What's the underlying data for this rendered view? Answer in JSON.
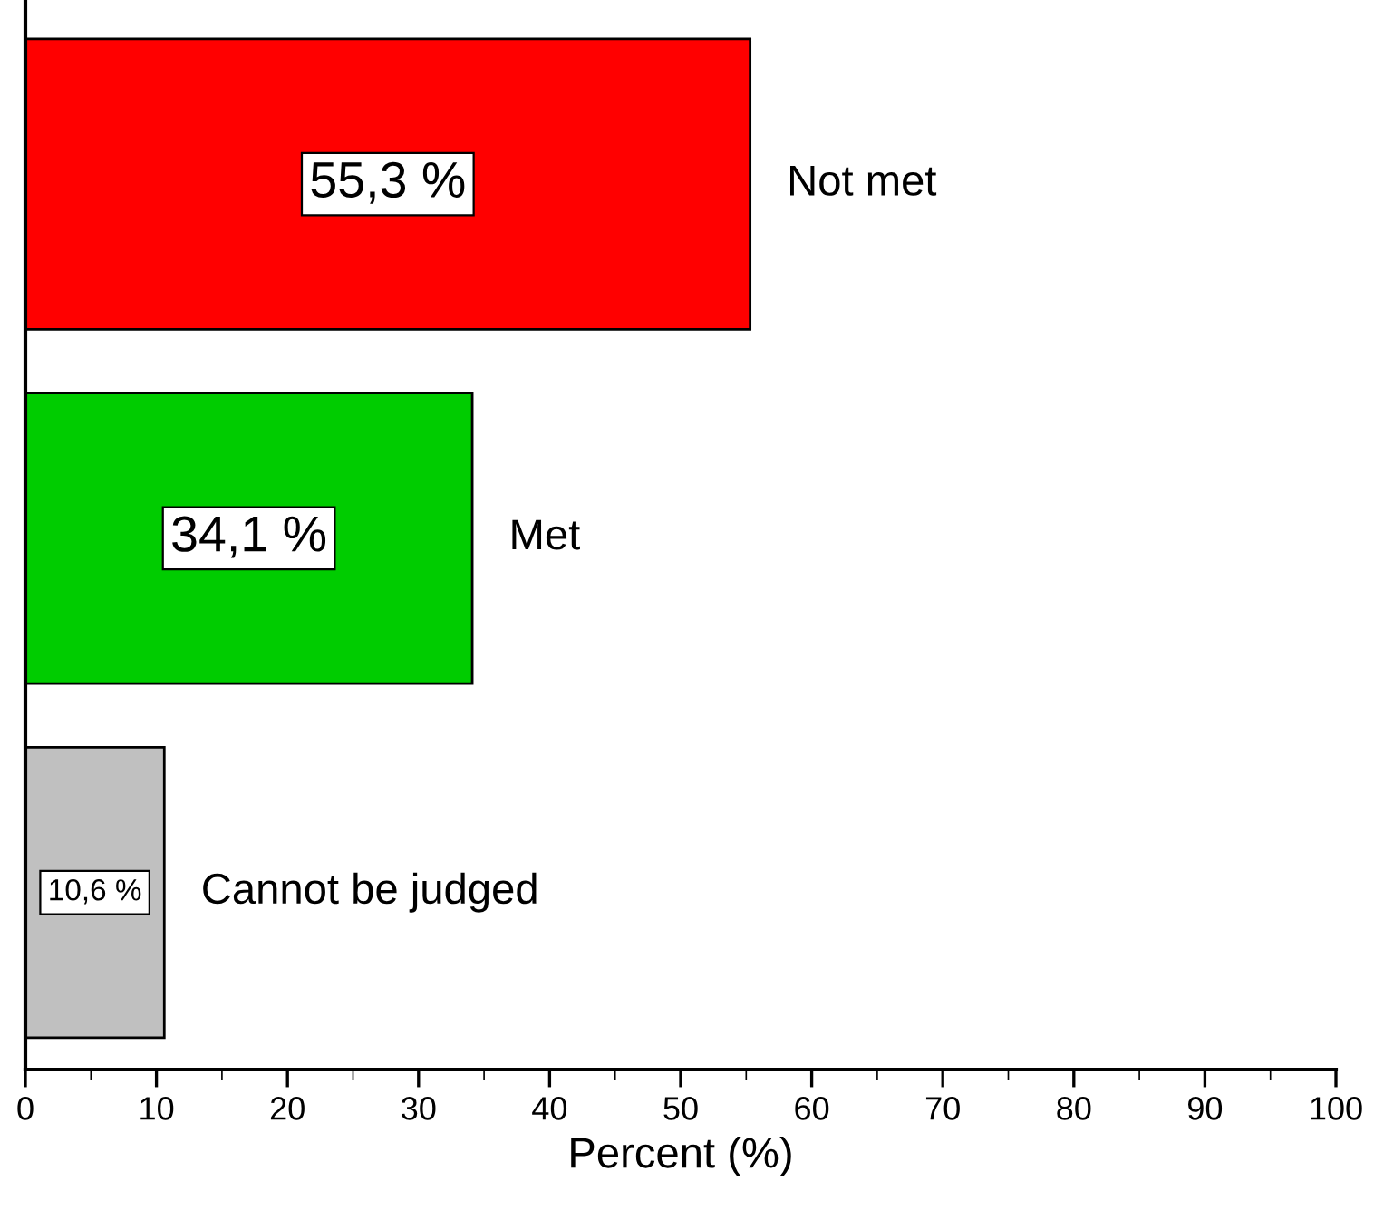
{
  "chart_data": {
    "type": "bar",
    "orientation": "horizontal",
    "xlabel": "Percent (%)",
    "categories": [
      "Not met",
      "Met",
      "Cannot be judged"
    ],
    "values": [
      55.3,
      34.1,
      10.6
    ],
    "colors": [
      "#ff0000",
      "#00cc00",
      "#c0c0c0"
    ],
    "value_labels": [
      "55,3 %",
      "34,1 %",
      "10,6 %"
    ],
    "xlim": [
      0,
      100
    ],
    "xticks": [
      0,
      10,
      20,
      30,
      40,
      50,
      60,
      70,
      80,
      90,
      100
    ],
    "tick_labels": "x",
    "grid": false,
    "legend": false
  }
}
